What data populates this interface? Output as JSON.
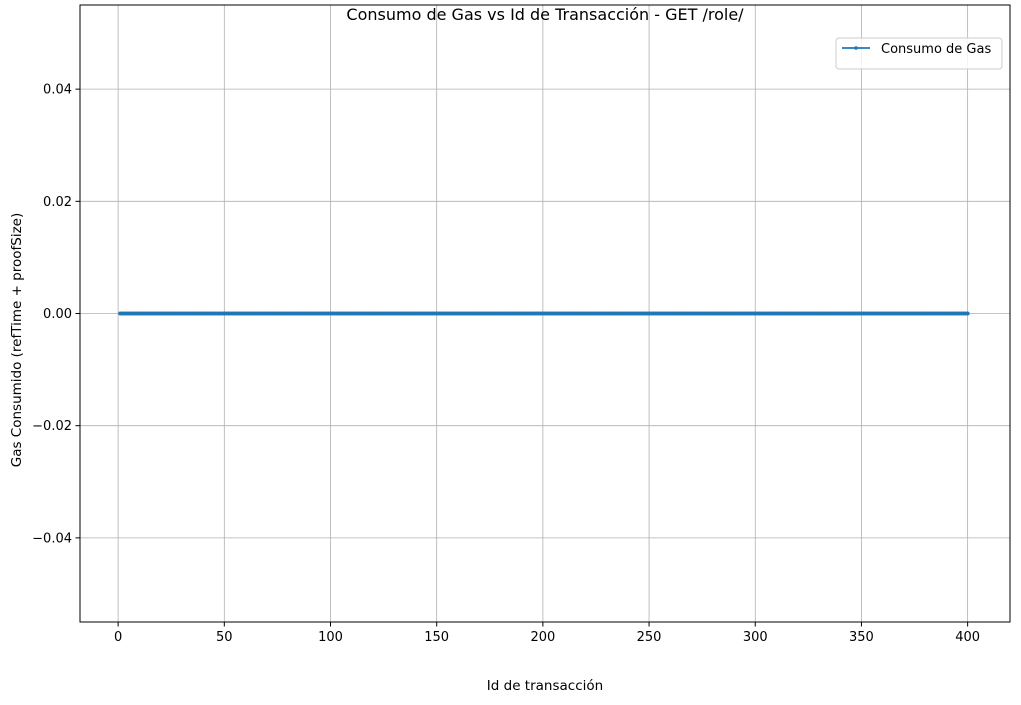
{
  "chart_data": {
    "type": "line",
    "title": "Consumo de Gas vs Id de Transacción - GET /role/",
    "xlabel": "Id de transacción",
    "ylabel": "Gas Consumido (refTime + proofSize)",
    "xlim": [
      -17.95,
      419.95
    ],
    "ylim": [
      -0.055,
      0.055
    ],
    "x_ticks": [
      0,
      50,
      100,
      150,
      200,
      250,
      300,
      350,
      400
    ],
    "x_tick_labels": [
      "0",
      "50",
      "100",
      "150",
      "200",
      "250",
      "300",
      "350",
      "400"
    ],
    "y_ticks": [
      -0.04,
      -0.02,
      0.0,
      0.02,
      0.04
    ],
    "y_tick_labels": [
      "−0.04",
      "−0.02",
      "0.00",
      "0.02",
      "0.04"
    ],
    "grid": true,
    "legend_position": "top-right",
    "series": [
      {
        "name": "Consumo de Gas",
        "color": "#1f77b4",
        "marker": "dot",
        "x_start": 1,
        "x_end": 400,
        "x_step": 1,
        "y_constant": 0
      }
    ]
  }
}
